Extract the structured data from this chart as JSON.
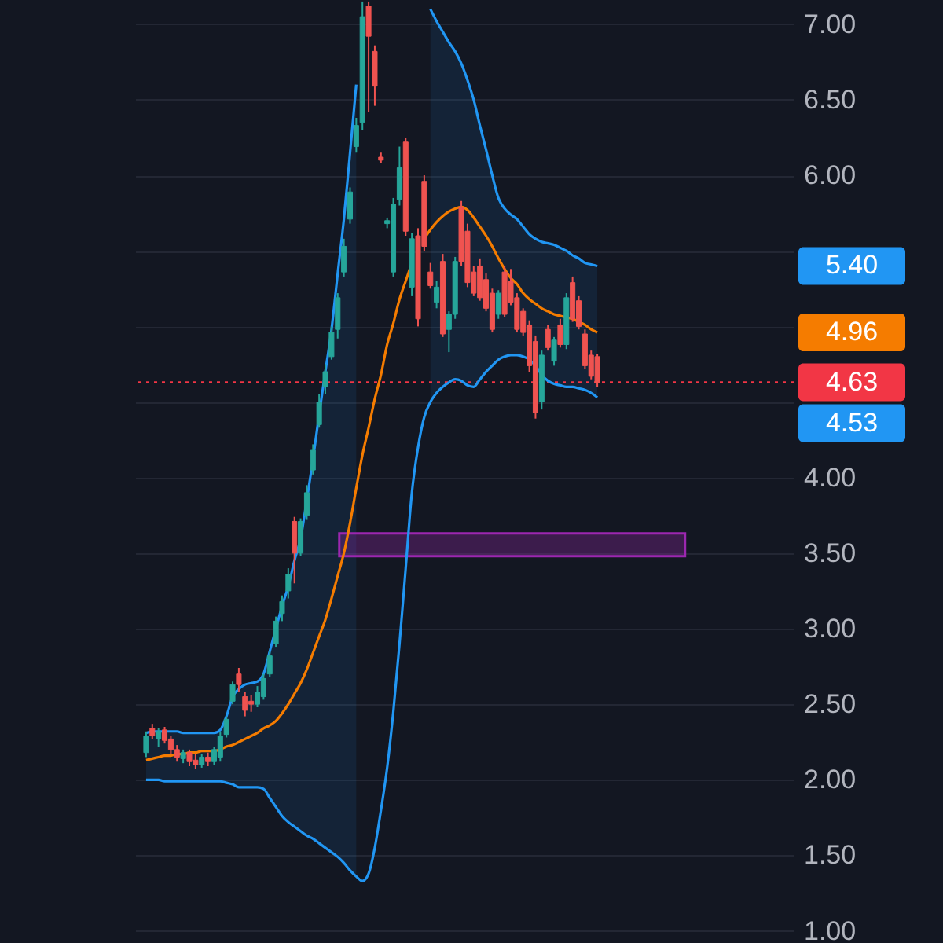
{
  "chart_data": {
    "type": "candlestick",
    "categories": [
      null,
      null,
      null,
      null,
      null,
      null,
      null,
      null,
      null,
      null,
      null,
      null,
      null,
      null,
      null,
      null,
      null,
      null,
      null,
      null,
      null,
      null,
      null,
      null,
      null,
      null,
      null,
      null,
      null,
      null,
      null,
      null,
      null,
      null,
      null,
      null,
      null,
      null,
      null,
      null,
      null,
      null,
      null,
      null,
      null,
      null,
      null,
      null,
      null,
      null,
      null,
      null,
      null,
      null,
      null,
      null,
      null,
      null,
      null,
      null,
      null,
      null,
      null,
      null,
      null,
      null,
      null,
      null,
      null,
      null,
      null,
      null,
      null,
      null,
      null,
      null,
      null,
      null,
      null,
      null,
      null,
      null,
      null,
      null,
      null,
      null,
      null,
      null,
      null,
      null,
      null,
      null,
      null,
      null,
      null,
      null,
      null,
      null,
      null,
      null,
      null,
      null,
      null,
      null
    ],
    "ohlc": [
      [
        2.18,
        2.32,
        2.15,
        2.29
      ],
      [
        2.34,
        2.37,
        2.27,
        2.29
      ],
      [
        2.27,
        2.34,
        2.22,
        2.32
      ],
      [
        2.33,
        2.35,
        2.24,
        2.26
      ],
      [
        2.27,
        2.29,
        2.17,
        2.2
      ],
      [
        2.2,
        2.23,
        2.12,
        2.15
      ],
      [
        2.14,
        2.2,
        2.11,
        2.18
      ],
      [
        2.18,
        2.2,
        2.09,
        2.12
      ],
      [
        2.13,
        2.17,
        2.07,
        2.1
      ],
      [
        2.1,
        2.17,
        2.08,
        2.15
      ],
      [
        2.15,
        2.18,
        2.09,
        2.12
      ],
      [
        2.12,
        2.22,
        2.1,
        2.2
      ],
      [
        2.15,
        2.32,
        2.12,
        2.29
      ],
      [
        2.3,
        2.42,
        2.28,
        2.4
      ],
      [
        2.52,
        2.65,
        2.5,
        2.63
      ],
      [
        2.7,
        2.74,
        2.58,
        2.63
      ],
      [
        2.55,
        2.58,
        2.42,
        2.46
      ],
      [
        2.52,
        2.56,
        2.45,
        2.5
      ],
      [
        2.5,
        2.62,
        2.48,
        2.58
      ],
      [
        2.55,
        2.7,
        2.53,
        2.67
      ],
      [
        2.7,
        2.85,
        2.68,
        2.82
      ],
      [
        2.9,
        3.08,
        2.88,
        3.05
      ],
      [
        3.1,
        3.22,
        3.05,
        3.18
      ],
      [
        3.25,
        3.4,
        3.2,
        3.36
      ],
      [
        3.71,
        3.74,
        3.3,
        3.5
      ],
      [
        3.5,
        3.73,
        3.48,
        3.71
      ],
      [
        3.75,
        3.95,
        3.72,
        3.9
      ],
      [
        4.05,
        4.22,
        4.02,
        4.18
      ],
      [
        4.35,
        4.55,
        4.33,
        4.5
      ],
      [
        4.6,
        4.75,
        4.55,
        4.7
      ],
      [
        4.8,
        5.0,
        4.78,
        4.96
      ],
      [
        4.98,
        5.22,
        4.92,
        5.19
      ],
      [
        5.36,
        5.58,
        5.33,
        5.53
      ],
      [
        5.71,
        5.92,
        5.68,
        5.89
      ],
      [
        6.19,
        6.38,
        6.15,
        6.33
      ],
      [
        6.35,
        7.15,
        6.3,
        7.05
      ],
      [
        7.12,
        7.15,
        6.42,
        6.92
      ],
      [
        6.82,
        6.86,
        6.46,
        6.59
      ],
      [
        6.12,
        6.15,
        6.08,
        6.1
      ],
      [
        5.68,
        5.72,
        5.65,
        5.7
      ],
      [
        5.36,
        5.85,
        5.33,
        5.81
      ],
      [
        5.84,
        6.19,
        5.8,
        6.05
      ],
      [
        6.22,
        6.25,
        5.6,
        5.63
      ],
      [
        5.26,
        5.62,
        5.2,
        5.58
      ],
      [
        5.6,
        5.65,
        5.0,
        5.05
      ],
      [
        5.96,
        6.0,
        5.5,
        5.53
      ],
      [
        5.36,
        5.42,
        5.25,
        5.27
      ],
      [
        5.16,
        5.3,
        5.12,
        5.26
      ],
      [
        5.43,
        5.48,
        4.93,
        4.95
      ],
      [
        4.98,
        5.1,
        4.83,
        5.08
      ],
      [
        5.08,
        5.46,
        5.05,
        5.43
      ],
      [
        5.79,
        5.83,
        5.4,
        5.43
      ],
      [
        5.63,
        5.68,
        5.26,
        5.29
      ],
      [
        5.36,
        5.4,
        5.2,
        5.22
      ],
      [
        5.4,
        5.45,
        5.17,
        5.19
      ],
      [
        5.31,
        5.35,
        5.1,
        5.12
      ],
      [
        5.22,
        5.25,
        4.96,
        4.98
      ],
      [
        5.08,
        5.24,
        5.05,
        5.22
      ],
      [
        5.36,
        5.4,
        5.06,
        5.08
      ],
      [
        5.3,
        5.38,
        5.14,
        5.16
      ],
      [
        5.19,
        5.22,
        4.96,
        4.98
      ],
      [
        5.1,
        5.12,
        4.94,
        4.96
      ],
      [
        5.01,
        5.04,
        4.7,
        4.74
      ],
      [
        4.9,
        4.94,
        4.39,
        4.43
      ],
      [
        4.5,
        4.84,
        4.45,
        4.81
      ],
      [
        4.98,
        5.01,
        4.84,
        4.86
      ],
      [
        4.77,
        4.93,
        4.74,
        4.91
      ],
      [
        5.01,
        5.05,
        4.86,
        4.88
      ],
      [
        4.88,
        5.22,
        4.85,
        5.19
      ],
      [
        5.29,
        5.33,
        5.03,
        5.05
      ],
      [
        5.17,
        5.2,
        4.98,
        5.0
      ],
      [
        4.95,
        4.98,
        4.72,
        4.74
      ],
      [
        4.81,
        4.84,
        4.65,
        4.67
      ],
      [
        4.8,
        4.82,
        4.6,
        4.63
      ],
      null,
      null,
      null,
      null,
      null,
      null,
      null,
      null,
      null,
      null,
      null,
      null,
      null,
      null,
      null,
      null,
      null,
      null,
      null,
      null,
      null,
      null,
      null,
      null,
      null,
      null,
      null,
      null,
      null,
      null
    ],
    "colors": [
      "#26a69a",
      "#ef5350",
      "#26a69a",
      "#ef5350",
      "#ef5350",
      "#ef5350",
      "#26a69a",
      "#ef5350",
      "#ef5350",
      "#26a69a",
      "#ef5350",
      "#26a69a",
      "#26a69a",
      "#26a69a",
      "#26a69a",
      "#ef5350",
      "#ef5350",
      "#ef5350",
      "#26a69a",
      "#26a69a",
      "#26a69a",
      "#26a69a",
      "#26a69a",
      "#26a69a",
      "#ef5350",
      "#26a69a",
      "#26a69a",
      "#26a69a",
      "#26a69a",
      "#26a69a",
      "#26a69a",
      "#26a69a",
      "#26a69a",
      "#26a69a",
      "#26a69a",
      "#26a69a",
      "#ef5350",
      "#ef5350",
      "#ef5350",
      "#26a69a",
      "#26a69a",
      "#26a69a",
      "#ef5350",
      "#26a69a",
      "#ef5350",
      "#ef5350",
      "#ef5350",
      "#26a69a",
      "#ef5350",
      "#26a69a",
      "#26a69a",
      "#ef5350",
      "#ef5350",
      "#ef5350",
      "#ef5350",
      "#ef5350",
      "#ef5350",
      "#26a69a",
      "#ef5350",
      "#ef5350",
      "#ef5350",
      "#ef5350",
      "#ef5350",
      "#ef5350",
      "#26a69a",
      "#ef5350",
      "#26a69a",
      "#ef5350",
      "#26a69a",
      "#ef5350",
      "#ef5350",
      "#ef5350",
      "#ef5350",
      "#ef5350",
      null,
      null,
      null,
      null,
      null,
      null,
      null,
      null,
      null,
      null,
      null,
      null,
      null,
      null,
      null,
      null,
      null,
      null,
      null,
      null,
      null,
      null,
      null,
      null,
      null,
      null,
      null,
      null,
      null,
      null
    ],
    "series": [
      {
        "type": "line",
        "color": "#2196f3",
        "values": [
          2.31,
          2.32,
          2.32,
          2.32,
          2.32,
          2.32,
          2.31,
          2.31,
          2.31,
          2.31,
          2.31,
          2.31,
          2.33,
          2.42,
          2.55,
          2.6,
          2.63,
          2.64,
          2.65,
          2.7,
          2.85,
          3.0,
          3.15,
          3.28,
          3.45,
          3.6,
          3.85,
          4.12,
          4.42,
          4.7,
          4.98,
          5.35,
          5.71,
          6.15,
          6.6,
          null,
          null,
          null,
          null,
          null,
          null,
          null,
          null,
          null,
          null,
          null,
          7.1,
          7.02,
          6.95,
          6.88,
          6.82,
          6.74,
          6.63,
          6.5,
          6.33,
          6.17,
          6.0,
          5.85,
          5.78,
          5.74,
          5.71,
          5.66,
          5.61,
          5.58,
          5.56,
          5.55,
          5.54,
          5.52,
          5.5,
          5.47,
          5.45,
          5.42,
          5.41,
          5.4,
          null,
          null,
          null,
          null,
          null,
          null,
          null,
          null,
          null,
          null,
          null,
          null,
          null,
          null,
          null,
          null,
          null,
          null,
          null,
          null,
          null,
          null,
          null,
          null,
          null,
          null,
          null,
          null,
          null,
          null
        ]
      },
      {
        "type": "line",
        "color": "#f57c00",
        "values": [
          2.13,
          2.14,
          2.15,
          2.16,
          2.16,
          2.17,
          2.17,
          2.18,
          2.18,
          2.19,
          2.19,
          2.19,
          2.2,
          2.22,
          2.23,
          2.25,
          2.27,
          2.29,
          2.31,
          2.34,
          2.36,
          2.39,
          2.44,
          2.5,
          2.57,
          2.64,
          2.73,
          2.84,
          2.95,
          3.06,
          3.2,
          3.35,
          3.5,
          3.7,
          3.93,
          4.15,
          4.33,
          4.52,
          4.68,
          4.88,
          5.02,
          5.18,
          5.3,
          5.42,
          null,
          5.58,
          5.64,
          5.69,
          5.73,
          5.76,
          5.78,
          5.79,
          5.77,
          5.72,
          5.66,
          5.6,
          5.53,
          5.45,
          5.38,
          5.32,
          5.28,
          5.22,
          5.18,
          5.15,
          5.12,
          5.1,
          5.08,
          5.07,
          5.06,
          5.05,
          5.03,
          5.01,
          4.98,
          4.96,
          null,
          null,
          null,
          null,
          null,
          null,
          null,
          null,
          null,
          null,
          null,
          null,
          null,
          null,
          null,
          null,
          null,
          null,
          null,
          null,
          null,
          null,
          null,
          null,
          null,
          null,
          null,
          null,
          null,
          null
        ],
        "lower": [
          2.0,
          2.0,
          2.0,
          1.99,
          1.99,
          1.99,
          1.99,
          1.99,
          1.99,
          1.99,
          1.99,
          1.99,
          1.99,
          1.98,
          1.97,
          1.95,
          1.95,
          1.95,
          1.95,
          1.94,
          1.88,
          1.82,
          1.76,
          1.72,
          1.69,
          1.66,
          1.63,
          1.61,
          1.58,
          1.55,
          1.52,
          1.49,
          1.45,
          1.4,
          1.36,
          null,
          null,
          null,
          null,
          null,
          null,
          null,
          null,
          null,
          null,
          null,
          4.5,
          4.56,
          4.6,
          4.63,
          4.65,
          4.64,
          4.61,
          4.6,
          4.65,
          4.7,
          4.74,
          4.78,
          4.8,
          4.81,
          4.81,
          4.8,
          4.78,
          4.74,
          4.68,
          4.64,
          4.62,
          4.61,
          4.6,
          4.6,
          4.59,
          4.58,
          4.56,
          4.53,
          null,
          null,
          null,
          null,
          null,
          null,
          null,
          null,
          null,
          null,
          null,
          null,
          null,
          null,
          null,
          null,
          null,
          null,
          null,
          null,
          null,
          null,
          null,
          null,
          null,
          null,
          null,
          null,
          null,
          null
        ],
        "upper": [
          2.31,
          2.32,
          2.32,
          2.32,
          2.32,
          2.32,
          2.31,
          2.31,
          2.31,
          2.31,
          2.31,
          2.31,
          2.33,
          2.42,
          2.55,
          2.6,
          2.63,
          2.64,
          2.65,
          2.7,
          2.85,
          3.0,
          3.15,
          3.28,
          3.45,
          3.6,
          3.85,
          4.12,
          4.42,
          4.7,
          4.98,
          5.35,
          5.71,
          6.15,
          6.6,
          null,
          null,
          null,
          null,
          null,
          null,
          null,
          null,
          null,
          null,
          null,
          7.1,
          7.02,
          6.95,
          6.88,
          6.82,
          6.74,
          6.63,
          6.5,
          6.33,
          6.17,
          6.0,
          5.85,
          5.78,
          5.74,
          5.71,
          5.66,
          5.61,
          5.58,
          5.56,
          5.55,
          5.54,
          5.52,
          5.5,
          5.47,
          5.45,
          5.42,
          5.41,
          5.4,
          null,
          null,
          null,
          null,
          null,
          null,
          null,
          null,
          null,
          null,
          null,
          null,
          null,
          null,
          null,
          null,
          null,
          null,
          null,
          null,
          null,
          null,
          null,
          null,
          null,
          null,
          null,
          null,
          null,
          null
        ]
      },
      {
        "type": "line",
        "color": "#2196f3",
        "values": [
          2.0,
          2.0,
          2.0,
          1.99,
          1.99,
          1.99,
          1.99,
          1.99,
          1.99,
          1.99,
          1.99,
          1.99,
          1.99,
          1.98,
          1.97,
          1.95,
          1.95,
          1.95,
          1.95,
          1.94,
          1.88,
          1.82,
          1.76,
          1.72,
          1.69,
          1.66,
          1.63,
          1.61,
          1.58,
          1.55,
          1.52,
          1.49,
          1.45,
          1.4,
          1.36,
          1.33,
          1.38,
          1.55,
          1.8,
          2.08,
          2.45,
          2.9,
          3.4,
          3.9,
          4.2,
          4.4,
          4.5,
          4.56,
          4.6,
          4.63,
          4.65,
          4.64,
          4.61,
          4.6,
          4.65,
          4.7,
          4.74,
          4.78,
          4.8,
          4.81,
          4.81,
          4.8,
          4.78,
          4.74,
          4.68,
          4.64,
          4.62,
          4.61,
          4.6,
          4.6,
          4.59,
          4.58,
          4.56,
          4.53,
          null,
          null,
          null,
          null,
          null,
          null,
          null,
          null,
          null,
          null,
          null,
          null,
          null,
          null,
          null,
          null,
          null,
          null,
          null,
          null,
          null,
          null,
          null,
          null,
          null,
          null,
          null,
          null,
          null,
          null
        ]
      }
    ],
    "annotations": [
      "5.40",
      "4.96",
      "4.53"
    ],
    "ylim": [
      0.92,
      7.16
    ],
    "yticks": [
      {
        "value": 1,
        "label": "1.00"
      },
      {
        "value": 1.5,
        "label": "1.50"
      },
      {
        "value": 2,
        "label": "2.00"
      },
      {
        "value": 2.5,
        "label": "2.50"
      },
      {
        "value": 3,
        "label": "3.00"
      },
      {
        "value": 3.5,
        "label": "3.50"
      },
      {
        "value": 4,
        "label": "4.00"
      },
      {
        "value": 4.5,
        "label": null
      },
      {
        "value": 5,
        "label": null
      },
      {
        "value": 5.5,
        "label": null
      },
      {
        "value": 6,
        "label": "6.00"
      },
      {
        "value": 6.5,
        "label": "6.50"
      },
      {
        "value": 7,
        "label": "7.00"
      }
    ],
    "ref_lines": [
      {
        "axis": "y",
        "value": 4.63,
        "label": "4.63",
        "color": "#f23645",
        "line_style": "dotted"
      }
    ],
    "bands": [
      {
        "axis": "y",
        "from": 3.48,
        "to": 3.63,
        "color": "#9c27b0"
      }
    ],
    "grid": "y",
    "tick_labels": "y",
    "line_style": "solid"
  }
}
